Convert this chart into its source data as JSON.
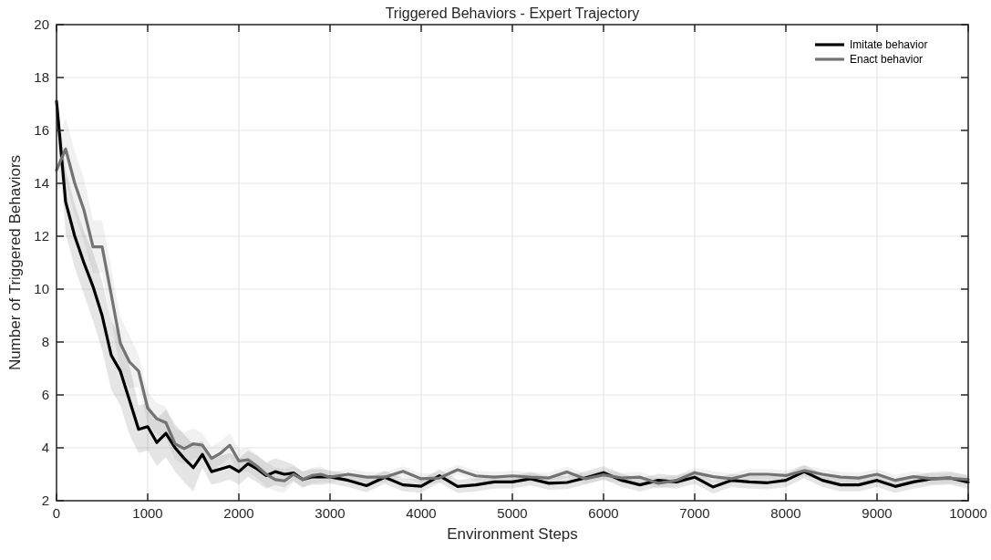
{
  "chart_data": {
    "type": "line",
    "title": "Triggered Behaviors - Expert Trajectory",
    "xlabel": "Environment Steps",
    "ylabel": "Number of Triggered Behaviors",
    "x": [
      0,
      100,
      200,
      300,
      400,
      500,
      600,
      700,
      800,
      900,
      1000,
      1100,
      1200,
      1300,
      1400,
      1500,
      1600,
      1700,
      1800,
      1900,
      2000,
      2100,
      2200,
      2300,
      2400,
      2500,
      2600,
      2700,
      2800,
      2900,
      3000,
      3200,
      3400,
      3600,
      3800,
      4000,
      4200,
      4400,
      4600,
      4800,
      5000,
      5200,
      5400,
      5600,
      5800,
      6000,
      6200,
      6400,
      6600,
      6800,
      7000,
      7200,
      7400,
      7600,
      7800,
      8000,
      8200,
      8400,
      8600,
      8800,
      9000,
      9200,
      9400,
      9600,
      9800,
      10000
    ],
    "series": [
      {
        "name": "Imitate behavior",
        "color": "#000000",
        "values": [
          17.1,
          13.3,
          12.0,
          11.0,
          10.1,
          9.0,
          7.5,
          6.9,
          5.8,
          4.7,
          4.8,
          4.2,
          4.55,
          4.0,
          3.6,
          3.25,
          3.75,
          3.1,
          3.2,
          3.3,
          3.1,
          3.4,
          3.2,
          2.95,
          3.1,
          3.0,
          3.05,
          2.8,
          2.9,
          2.9,
          2.9,
          2.77,
          2.57,
          2.89,
          2.6,
          2.55,
          2.94,
          2.54,
          2.6,
          2.71,
          2.71,
          2.83,
          2.66,
          2.69,
          2.86,
          3.06,
          2.77,
          2.6,
          2.77,
          2.71,
          2.89,
          2.52,
          2.77,
          2.71,
          2.68,
          2.77,
          3.1,
          2.77,
          2.6,
          2.6,
          2.77,
          2.54,
          2.71,
          2.83,
          2.86,
          2.7
        ],
        "lower": [
          16.6,
          12.1,
          10.8,
          9.8,
          8.8,
          7.7,
          6.2,
          5.6,
          4.5,
          3.8,
          3.9,
          3.3,
          3.65,
          3.1,
          2.7,
          2.35,
          3.25,
          2.6,
          2.7,
          2.8,
          2.6,
          2.9,
          2.7,
          2.45,
          2.6,
          2.5,
          2.75,
          2.5,
          2.6,
          2.6,
          2.65,
          2.52,
          2.32,
          2.64,
          2.35,
          2.3,
          2.69,
          2.29,
          2.35,
          2.46,
          2.46,
          2.58,
          2.41,
          2.44,
          2.61,
          2.81,
          2.52,
          2.35,
          2.52,
          2.46,
          2.64,
          2.27,
          2.52,
          2.46,
          2.43,
          2.52,
          2.85,
          2.52,
          2.35,
          2.35,
          2.52,
          2.29,
          2.46,
          2.58,
          2.61,
          2.45
        ],
        "upper": [
          17.6,
          14.5,
          13.2,
          12.2,
          11.4,
          10.3,
          8.8,
          8.2,
          7.1,
          5.6,
          5.7,
          5.1,
          5.45,
          4.9,
          4.5,
          4.15,
          4.25,
          3.6,
          3.7,
          3.8,
          3.6,
          3.9,
          3.7,
          3.45,
          3.6,
          3.5,
          3.35,
          3.1,
          3.2,
          3.2,
          3.15,
          3.02,
          2.82,
          3.14,
          2.85,
          2.8,
          3.19,
          2.79,
          2.85,
          2.96,
          2.96,
          3.08,
          2.91,
          2.94,
          3.11,
          3.31,
          3.02,
          2.85,
          3.02,
          2.96,
          3.14,
          2.77,
          3.02,
          2.96,
          2.93,
          3.02,
          3.35,
          3.02,
          2.85,
          2.85,
          3.02,
          2.79,
          2.96,
          3.08,
          3.11,
          2.95
        ]
      },
      {
        "name": "Enact behavior",
        "color": "#737373",
        "values": [
          14.5,
          15.3,
          14.0,
          13.0,
          11.6,
          11.6,
          9.8,
          7.95,
          7.25,
          6.9,
          5.5,
          5.1,
          4.95,
          4.15,
          3.97,
          4.15,
          4.1,
          3.6,
          3.8,
          4.1,
          3.5,
          3.55,
          3.3,
          3.0,
          2.8,
          2.75,
          3.0,
          2.8,
          2.95,
          3.0,
          2.89,
          3.0,
          2.89,
          2.89,
          3.11,
          2.83,
          2.86,
          3.17,
          2.94,
          2.89,
          2.94,
          2.89,
          2.86,
          3.09,
          2.83,
          2.98,
          2.86,
          2.89,
          2.66,
          2.77,
          3.06,
          2.91,
          2.83,
          3.0,
          3.0,
          2.95,
          3.14,
          3.0,
          2.89,
          2.86,
          3.0,
          2.77,
          2.91,
          2.83,
          2.85,
          2.8
        ],
        "lower": [
          13.7,
          14.1,
          12.8,
          11.8,
          10.6,
          10.6,
          8.8,
          6.95,
          6.25,
          6.3,
          4.9,
          4.5,
          4.35,
          3.55,
          3.37,
          3.55,
          3.65,
          3.15,
          3.35,
          3.65,
          3.05,
          3.1,
          2.85,
          2.55,
          2.35,
          2.3,
          2.7,
          2.5,
          2.65,
          2.7,
          2.69,
          2.8,
          2.69,
          2.69,
          2.91,
          2.63,
          2.66,
          2.97,
          2.74,
          2.69,
          2.74,
          2.69,
          2.66,
          2.89,
          2.63,
          2.78,
          2.66,
          2.69,
          2.46,
          2.57,
          2.86,
          2.71,
          2.63,
          2.8,
          2.8,
          2.75,
          2.94,
          2.8,
          2.69,
          2.66,
          2.8,
          2.57,
          2.71,
          2.63,
          2.65,
          2.6
        ],
        "upper": [
          15.3,
          16.5,
          15.2,
          14.2,
          12.6,
          12.6,
          10.8,
          8.95,
          8.25,
          7.5,
          6.1,
          5.7,
          5.55,
          4.75,
          4.57,
          4.75,
          4.55,
          4.05,
          4.25,
          4.55,
          3.95,
          4.0,
          3.75,
          3.45,
          3.25,
          3.2,
          3.3,
          3.1,
          3.25,
          3.3,
          3.09,
          3.2,
          3.09,
          3.09,
          3.31,
          3.03,
          3.06,
          3.37,
          3.14,
          3.09,
          3.14,
          3.09,
          3.06,
          3.29,
          3.03,
          3.18,
          3.06,
          3.09,
          2.86,
          2.97,
          3.26,
          3.11,
          3.03,
          3.2,
          3.2,
          3.15,
          3.34,
          3.2,
          3.09,
          3.06,
          3.2,
          2.97,
          3.11,
          3.03,
          3.05,
          3.0
        ]
      }
    ],
    "xlim": [
      0,
      10000
    ],
    "xticks": [
      0,
      1000,
      2000,
      3000,
      4000,
      5000,
      6000,
      7000,
      8000,
      9000,
      10000
    ],
    "ylim": [
      2,
      20
    ],
    "yticks": [
      2,
      4,
      6,
      8,
      10,
      12,
      14,
      16,
      18,
      20
    ],
    "grid": true,
    "legend": "top right",
    "line_style": "solid",
    "marker": "none"
  }
}
